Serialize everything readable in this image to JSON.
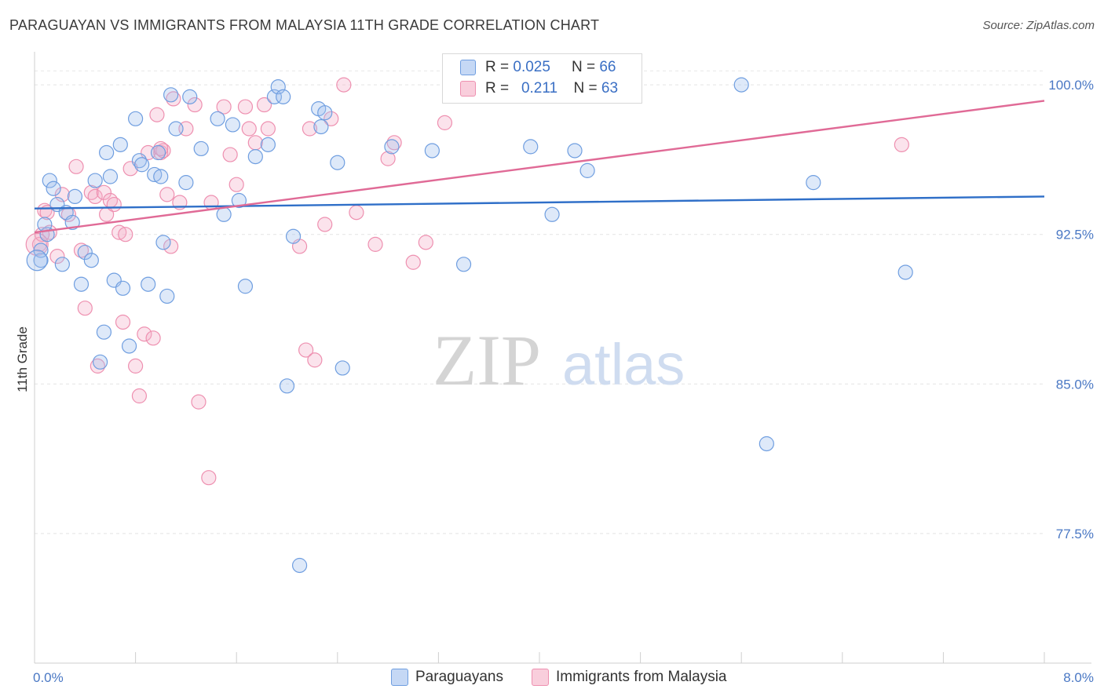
{
  "title": "PARAGUAYAN VS IMMIGRANTS FROM MALAYSIA 11TH GRADE CORRELATION CHART",
  "source": "Source: ZipAtlas.com",
  "watermark": {
    "zip": "ZIP",
    "atlas": "atlas"
  },
  "legend": {
    "r_label": "R =",
    "n_label": "N =",
    "rows": [
      {
        "name": "Paraguayans",
        "r": "0.025",
        "n": "66"
      },
      {
        "name": "Immigrants from Malaysia",
        "r": "0.211",
        "n": "63"
      }
    ]
  },
  "chart_data": {
    "type": "scatter",
    "title": "PARAGUAYAN VS IMMIGRANTS FROM MALAYSIA 11TH GRADE CORRELATION CHART",
    "xlabel": "",
    "ylabel": "11th Grade",
    "xlim": [
      0,
      8
    ],
    "ylim": [
      71,
      101.5
    ],
    "x_tick_labels": [
      "0.0%",
      "8.0%"
    ],
    "y_ticks": [
      77.5,
      85.0,
      92.5,
      100.0
    ],
    "y_tick_labels": [
      "77.5%",
      "85.0%",
      "92.5%",
      "100.0%"
    ],
    "colors": {
      "blue": "#6f9ee0",
      "pink": "#ee90b0",
      "blue_line": "#2f6fc8",
      "pink_line": "#e06a96"
    },
    "series": [
      {
        "name": "Paraguayans",
        "color": "#6f9ee0",
        "trend": {
          "x": [
            0,
            8
          ],
          "y": [
            93.8,
            94.4
          ]
        },
        "points": [
          [
            0.05,
            91.2
          ],
          [
            0.1,
            92.5
          ],
          [
            0.12,
            95.2
          ],
          [
            0.15,
            94.8
          ],
          [
            0.18,
            94.0
          ],
          [
            0.22,
            91.0
          ],
          [
            0.25,
            93.6
          ],
          [
            0.3,
            93.1
          ],
          [
            0.32,
            94.4
          ],
          [
            0.37,
            90.0
          ],
          [
            0.4,
            91.6
          ],
          [
            0.45,
            91.2
          ],
          [
            0.48,
            95.2
          ],
          [
            0.52,
            86.1
          ],
          [
            0.55,
            87.6
          ],
          [
            0.57,
            96.6
          ],
          [
            0.6,
            95.4
          ],
          [
            0.63,
            90.2
          ],
          [
            0.68,
            97.0
          ],
          [
            0.7,
            89.8
          ],
          [
            0.75,
            86.9
          ],
          [
            0.8,
            98.3
          ],
          [
            0.83,
            96.2
          ],
          [
            0.85,
            96.0
          ],
          [
            0.9,
            90.0
          ],
          [
            0.95,
            95.5
          ],
          [
            0.98,
            96.6
          ],
          [
            1.0,
            95.4
          ],
          [
            1.02,
            92.1
          ],
          [
            1.05,
            89.4
          ],
          [
            1.08,
            99.5
          ],
          [
            1.12,
            97.8
          ],
          [
            1.2,
            95.1
          ],
          [
            1.23,
            99.4
          ],
          [
            1.32,
            96.8
          ],
          [
            1.45,
            98.3
          ],
          [
            1.5,
            93.5
          ],
          [
            1.57,
            98.0
          ],
          [
            1.62,
            94.2
          ],
          [
            1.67,
            89.9
          ],
          [
            1.75,
            96.4
          ],
          [
            1.85,
            97.0
          ],
          [
            1.9,
            99.4
          ],
          [
            1.93,
            99.9
          ],
          [
            1.97,
            99.4
          ],
          [
            2.0,
            84.9
          ],
          [
            2.05,
            92.4
          ],
          [
            2.1,
            75.9
          ],
          [
            2.25,
            98.8
          ],
          [
            2.27,
            97.9
          ],
          [
            2.3,
            98.6
          ],
          [
            2.4,
            96.1
          ],
          [
            2.44,
            85.8
          ],
          [
            2.83,
            96.9
          ],
          [
            3.15,
            96.7
          ],
          [
            3.4,
            91.0
          ],
          [
            3.93,
            96.9
          ],
          [
            4.1,
            93.5
          ],
          [
            4.28,
            96.7
          ],
          [
            4.38,
            95.7
          ],
          [
            5.6,
            100.0
          ],
          [
            5.8,
            82.0
          ],
          [
            6.17,
            95.1
          ],
          [
            6.9,
            90.6
          ],
          [
            0.05,
            91.7
          ],
          [
            0.08,
            93.0
          ]
        ]
      },
      {
        "name": "Immigrants from Malaysia",
        "color": "#ee90b0",
        "trend": {
          "x": [
            0,
            8
          ],
          "y": [
            92.6,
            99.2
          ]
        },
        "points": [
          [
            0.04,
            92.0
          ],
          [
            0.08,
            93.7
          ],
          [
            0.12,
            92.6
          ],
          [
            0.18,
            91.4
          ],
          [
            0.22,
            94.5
          ],
          [
            0.27,
            93.5
          ],
          [
            0.33,
            95.9
          ],
          [
            0.37,
            91.7
          ],
          [
            0.4,
            88.8
          ],
          [
            0.45,
            94.6
          ],
          [
            0.48,
            94.4
          ],
          [
            0.5,
            85.9
          ],
          [
            0.55,
            94.6
          ],
          [
            0.57,
            93.5
          ],
          [
            0.6,
            94.2
          ],
          [
            0.63,
            94.0
          ],
          [
            0.67,
            92.6
          ],
          [
            0.7,
            88.1
          ],
          [
            0.72,
            92.5
          ],
          [
            0.76,
            95.8
          ],
          [
            0.8,
            85.9
          ],
          [
            0.83,
            84.4
          ],
          [
            0.87,
            87.5
          ],
          [
            0.9,
            96.6
          ],
          [
            0.94,
            87.3
          ],
          [
            0.97,
            98.5
          ],
          [
            1.0,
            96.6
          ],
          [
            1.02,
            96.7
          ],
          [
            1.05,
            94.5
          ],
          [
            1.08,
            91.9
          ],
          [
            1.1,
            99.3
          ],
          [
            1.15,
            94.1
          ],
          [
            1.2,
            97.8
          ],
          [
            1.27,
            99.0
          ],
          [
            1.3,
            84.1
          ],
          [
            1.38,
            80.3
          ],
          [
            1.4,
            94.1
          ],
          [
            1.5,
            98.9
          ],
          [
            1.55,
            96.5
          ],
          [
            1.6,
            95.0
          ],
          [
            1.67,
            98.9
          ],
          [
            1.7,
            97.8
          ],
          [
            1.75,
            97.1
          ],
          [
            1.82,
            99.0
          ],
          [
            1.85,
            97.8
          ],
          [
            2.1,
            91.9
          ],
          [
            2.15,
            86.7
          ],
          [
            2.18,
            97.8
          ],
          [
            2.22,
            86.2
          ],
          [
            2.3,
            93.0
          ],
          [
            2.35,
            98.3
          ],
          [
            2.55,
            93.6
          ],
          [
            2.45,
            100.0
          ],
          [
            2.7,
            92.0
          ],
          [
            2.8,
            96.3
          ],
          [
            2.85,
            97.1
          ],
          [
            3.0,
            91.1
          ],
          [
            3.1,
            92.1
          ],
          [
            3.25,
            98.1
          ],
          [
            6.87,
            97.0
          ],
          [
            0.1,
            93.6
          ],
          [
            0.06,
            92.5
          ],
          [
            1.0,
            96.8
          ]
        ]
      }
    ]
  }
}
